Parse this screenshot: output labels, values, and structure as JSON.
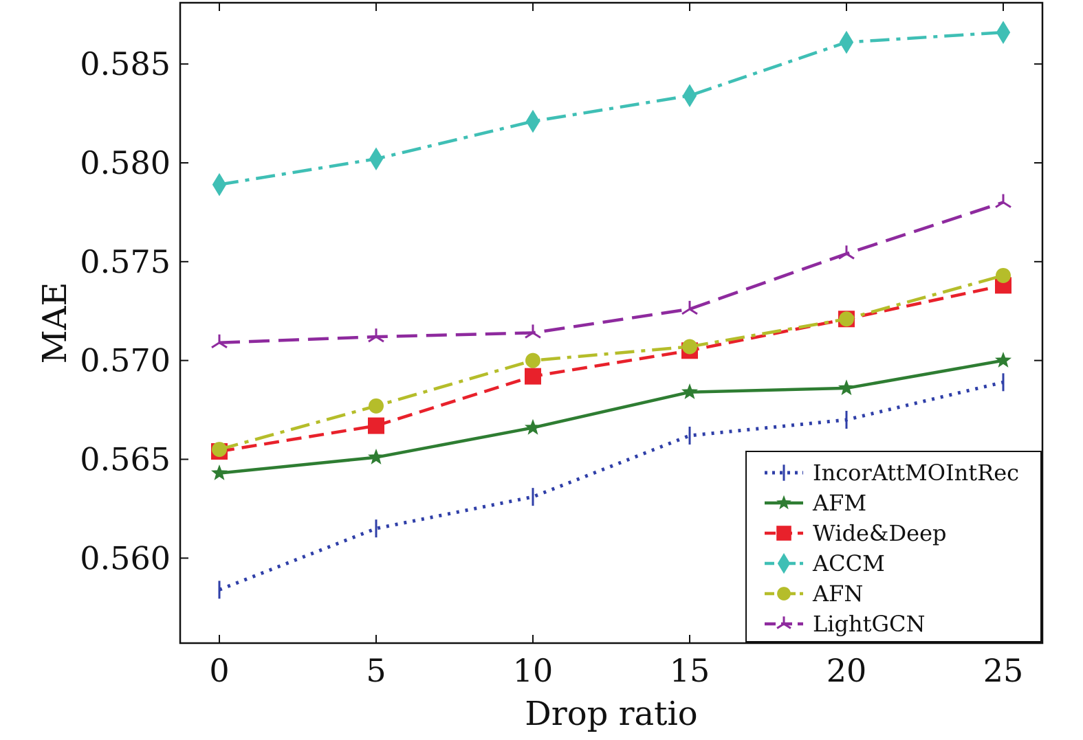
{
  "chart_data": {
    "type": "line",
    "title": "",
    "xlabel": "Drop ratio",
    "ylabel": "MAE",
    "x": [
      0,
      5,
      10,
      15,
      20,
      25
    ],
    "xlim": [
      -1.25,
      26.25
    ],
    "ylim": [
      0.5557,
      0.5881
    ],
    "xticks": [
      "0",
      "5",
      "10",
      "15",
      "20",
      "25"
    ],
    "yticks": [
      "0.560",
      "0.565",
      "0.570",
      "0.575",
      "0.580",
      "0.585"
    ],
    "grid": false,
    "legend_position": "bottom-right",
    "series": [
      {
        "name": "IncorAttMOIntRec",
        "color": "#2f3fa8",
        "dash": "dotted",
        "marker": "vtick",
        "values": [
          0.5584,
          0.5615,
          0.5631,
          0.5662,
          0.567,
          0.5689
        ]
      },
      {
        "name": "AFM",
        "color": "#2e7d32",
        "dash": "solid",
        "marker": "star",
        "values": [
          0.5643,
          0.5651,
          0.5666,
          0.5684,
          0.5686,
          0.57
        ]
      },
      {
        "name": "Wide&Deep",
        "color": "#e8212b",
        "dash": "dashed",
        "marker": "square",
        "values": [
          0.5654,
          0.5667,
          0.5692,
          0.5705,
          0.5721,
          0.5738
        ]
      },
      {
        "name": "ACCM",
        "color": "#3fbfb5",
        "dash": "dashdot",
        "marker": "diamond",
        "values": [
          0.5789,
          0.5802,
          0.5821,
          0.5834,
          0.5861,
          0.5866
        ]
      },
      {
        "name": "AFN",
        "color": "#b5bd2a",
        "dash": "dashdot",
        "marker": "circle",
        "values": [
          0.5655,
          0.5677,
          0.57,
          0.5707,
          0.5721,
          0.5743
        ]
      },
      {
        "name": "LightGCN",
        "color": "#8e2a9e",
        "dash": "longdash",
        "marker": "tri",
        "values": [
          0.5709,
          0.5712,
          0.5714,
          0.5726,
          0.5754,
          0.578
        ]
      }
    ]
  }
}
